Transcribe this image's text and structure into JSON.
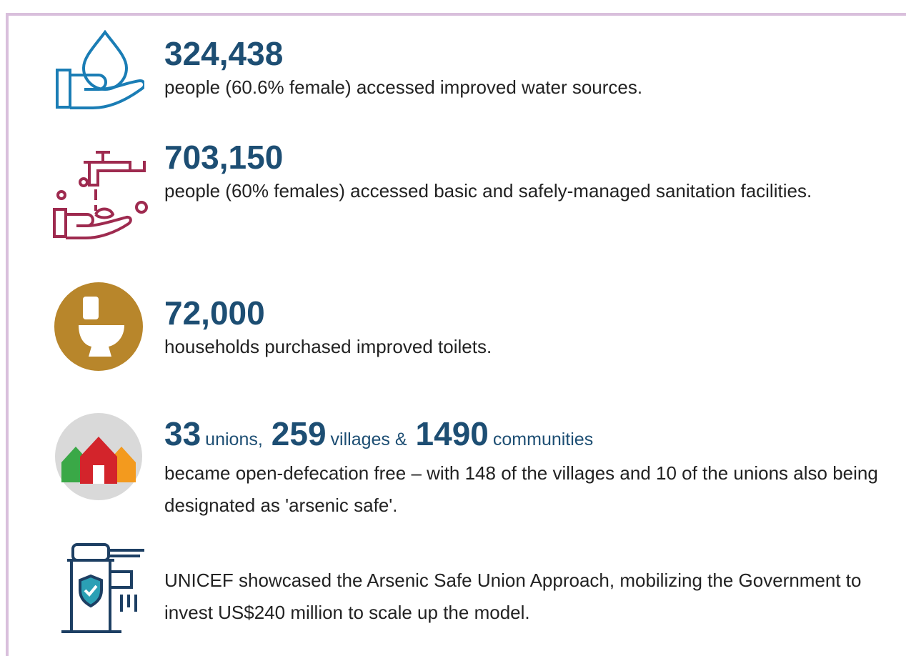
{
  "items": [
    {
      "stat": "324,438",
      "description": "people (60.6% female) accessed improved water sources."
    },
    {
      "stat": "703,150",
      "description": "people (60% females) accessed basic and safely-managed sanitation facilities."
    },
    {
      "stat": "72,000",
      "description": "households purchased improved toilets."
    },
    {
      "stats": [
        {
          "value": "33",
          "unit": "unions,"
        },
        {
          "value": "259",
          "unit": "villages &"
        },
        {
          "value": "1490",
          "unit": "communities"
        }
      ],
      "description": "became open-defecation free – with 148 of the villages and 10 of the unions also being designated as 'arsenic safe'."
    },
    {
      "description": "UNICEF showcased the Arsenic Safe Union Approach, mobilizing the Government to invest US$240 million to scale up the model."
    }
  ]
}
